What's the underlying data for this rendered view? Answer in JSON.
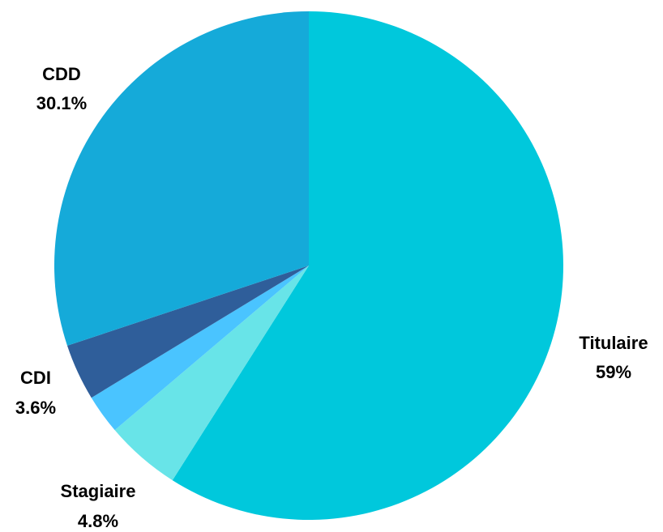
{
  "chart_data": {
    "type": "pie",
    "title": "",
    "slices": [
      {
        "label": "Titulaire",
        "value": 59.0,
        "display": "59%",
        "color": "#00C8DC"
      },
      {
        "label": "Stagiaire",
        "value": 4.8,
        "display": "4.8%",
        "color": "#68E4E8"
      },
      {
        "label": "",
        "value": 2.5,
        "display": "",
        "color": "#4AC4FF"
      },
      {
        "label": "CDI",
        "value": 3.6,
        "display": "3.6%",
        "color": "#2F5E9A"
      },
      {
        "label": "CDD",
        "value": 30.1,
        "display": "30.1%",
        "color": "#15AAD9"
      }
    ],
    "start_angle_deg": 0,
    "direction": "clockwise",
    "legend": "none"
  }
}
